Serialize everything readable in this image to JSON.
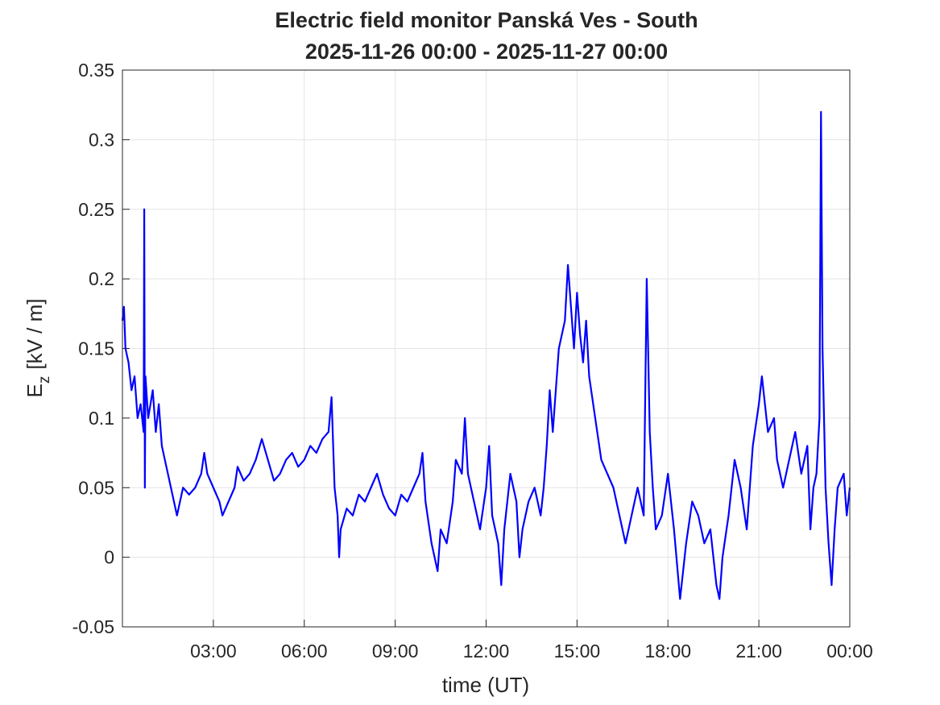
{
  "chart_data": {
    "type": "line",
    "title": [
      "Electric field monitor Panská Ves - South",
      "2025-11-26 00:00 - 2025-11-27 00:00"
    ],
    "xlabel": "time (UT)",
    "ylabel": [
      "E",
      "z",
      "[kV / m]"
    ],
    "color": "#0000ff",
    "grid": true,
    "xlim": [
      0,
      24
    ],
    "xticks": [
      {
        "value": 3,
        "label": "03:00"
      },
      {
        "value": 6,
        "label": "06:00"
      },
      {
        "value": 9,
        "label": "09:00"
      },
      {
        "value": 12,
        "label": "12:00"
      },
      {
        "value": 15,
        "label": "15:00"
      },
      {
        "value": 18,
        "label": "18:00"
      },
      {
        "value": 21,
        "label": "21:00"
      },
      {
        "value": 24,
        "label": "00:00"
      }
    ],
    "ylim": [
      -0.05,
      0.35
    ],
    "yticks": [
      -0.05,
      0,
      0.05,
      0.1,
      0.15,
      0.2,
      0.25,
      0.3,
      0.35
    ],
    "x": [
      0.0,
      0.05,
      0.1,
      0.2,
      0.3,
      0.4,
      0.5,
      0.6,
      0.7,
      0.72,
      0.74,
      0.76,
      0.85,
      1.0,
      1.1,
      1.2,
      1.3,
      1.4,
      1.5,
      1.6,
      1.7,
      1.8,
      1.9,
      2.0,
      2.2,
      2.4,
      2.6,
      2.7,
      2.8,
      3.0,
      3.2,
      3.3,
      3.5,
      3.7,
      3.8,
      4.0,
      4.2,
      4.4,
      4.6,
      4.8,
      5.0,
      5.2,
      5.4,
      5.6,
      5.8,
      6.0,
      6.2,
      6.4,
      6.6,
      6.8,
      6.9,
      7.0,
      7.1,
      7.15,
      7.2,
      7.4,
      7.6,
      7.8,
      8.0,
      8.2,
      8.4,
      8.6,
      8.8,
      9.0,
      9.2,
      9.4,
      9.6,
      9.8,
      9.9,
      10.0,
      10.2,
      10.4,
      10.5,
      10.7,
      10.9,
      11.0,
      11.2,
      11.3,
      11.4,
      11.6,
      11.8,
      12.0,
      12.1,
      12.2,
      12.4,
      12.5,
      12.6,
      12.8,
      13.0,
      13.1,
      13.2,
      13.4,
      13.6,
      13.8,
      13.9,
      14.0,
      14.1,
      14.2,
      14.4,
      14.6,
      14.7,
      14.8,
      14.9,
      15.0,
      15.1,
      15.2,
      15.3,
      15.4,
      15.6,
      15.8,
      16.0,
      16.2,
      16.4,
      16.6,
      16.8,
      17.0,
      17.2,
      17.3,
      17.4,
      17.5,
      17.6,
      17.8,
      18.0,
      18.2,
      18.4,
      18.6,
      18.8,
      19.0,
      19.2,
      19.4,
      19.6,
      19.7,
      19.8,
      20.0,
      20.2,
      20.4,
      20.6,
      20.8,
      21.0,
      21.1,
      21.3,
      21.5,
      21.6,
      21.8,
      22.0,
      22.2,
      22.4,
      22.6,
      22.7,
      22.8,
      22.9,
      23.0,
      23.05,
      23.1,
      23.2,
      23.3,
      23.4,
      23.5,
      23.6,
      23.8,
      23.9,
      24.0
    ],
    "values": [
      0.17,
      0.18,
      0.15,
      0.14,
      0.12,
      0.13,
      0.1,
      0.11,
      0.09,
      0.25,
      0.05,
      0.13,
      0.1,
      0.12,
      0.09,
      0.11,
      0.08,
      0.07,
      0.06,
      0.05,
      0.04,
      0.03,
      0.04,
      0.05,
      0.045,
      0.05,
      0.06,
      0.075,
      0.06,
      0.05,
      0.04,
      0.03,
      0.04,
      0.05,
      0.065,
      0.055,
      0.06,
      0.07,
      0.085,
      0.07,
      0.055,
      0.06,
      0.07,
      0.075,
      0.065,
      0.07,
      0.08,
      0.075,
      0.085,
      0.09,
      0.115,
      0.05,
      0.03,
      0.0,
      0.02,
      0.035,
      0.03,
      0.045,
      0.04,
      0.05,
      0.06,
      0.045,
      0.035,
      0.03,
      0.045,
      0.04,
      0.05,
      0.06,
      0.075,
      0.04,
      0.01,
      -0.01,
      0.02,
      0.01,
      0.04,
      0.07,
      0.06,
      0.1,
      0.06,
      0.04,
      0.02,
      0.05,
      0.08,
      0.03,
      0.01,
      -0.02,
      0.02,
      0.06,
      0.04,
      0.0,
      0.02,
      0.04,
      0.05,
      0.03,
      0.05,
      0.08,
      0.12,
      0.09,
      0.15,
      0.17,
      0.21,
      0.18,
      0.15,
      0.19,
      0.16,
      0.14,
      0.17,
      0.13,
      0.1,
      0.07,
      0.06,
      0.05,
      0.03,
      0.01,
      0.03,
      0.05,
      0.03,
      0.2,
      0.09,
      0.05,
      0.02,
      0.03,
      0.06,
      0.02,
      -0.03,
      0.01,
      0.04,
      0.03,
      0.01,
      0.02,
      -0.02,
      -0.03,
      0.0,
      0.03,
      0.07,
      0.05,
      0.02,
      0.08,
      0.11,
      0.13,
      0.09,
      0.1,
      0.07,
      0.05,
      0.07,
      0.09,
      0.06,
      0.08,
      0.02,
      0.05,
      0.06,
      0.1,
      0.32,
      0.15,
      0.05,
      0.01,
      -0.02,
      0.02,
      0.05,
      0.06,
      0.03,
      0.05
    ]
  }
}
